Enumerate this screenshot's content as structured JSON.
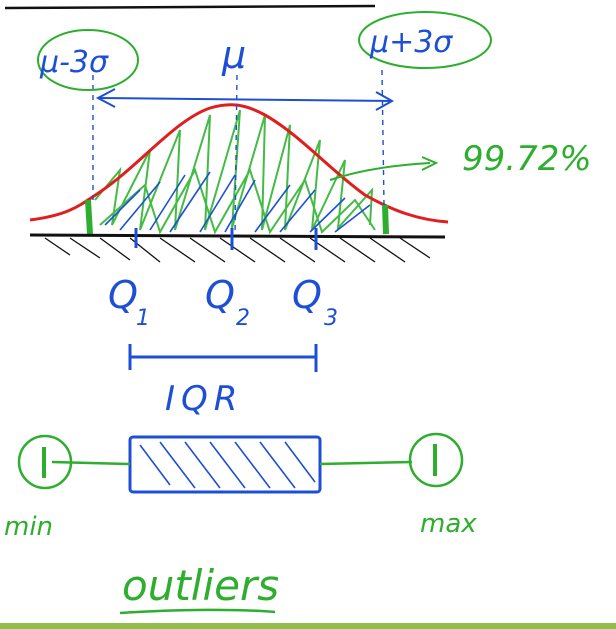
{
  "labels": {
    "mu_minus": "μ-3σ",
    "mu": "μ",
    "mu_plus": "μ+3σ",
    "coverage": "99.72%",
    "q1_main": "Q",
    "q1_sub": "1",
    "q2_main": "Q",
    "q2_sub": "2",
    "q3_main": "Q",
    "q3_sub": "3",
    "iqr": "IQR",
    "min": "min",
    "max": "max",
    "outliers": "outliers"
  },
  "colors": {
    "curve": "#e01e1e",
    "ink_blue": "#1c4fd6",
    "ink_green": "#2eae2e",
    "ink_black": "#111111",
    "hatch_green": "#44bb44"
  }
}
